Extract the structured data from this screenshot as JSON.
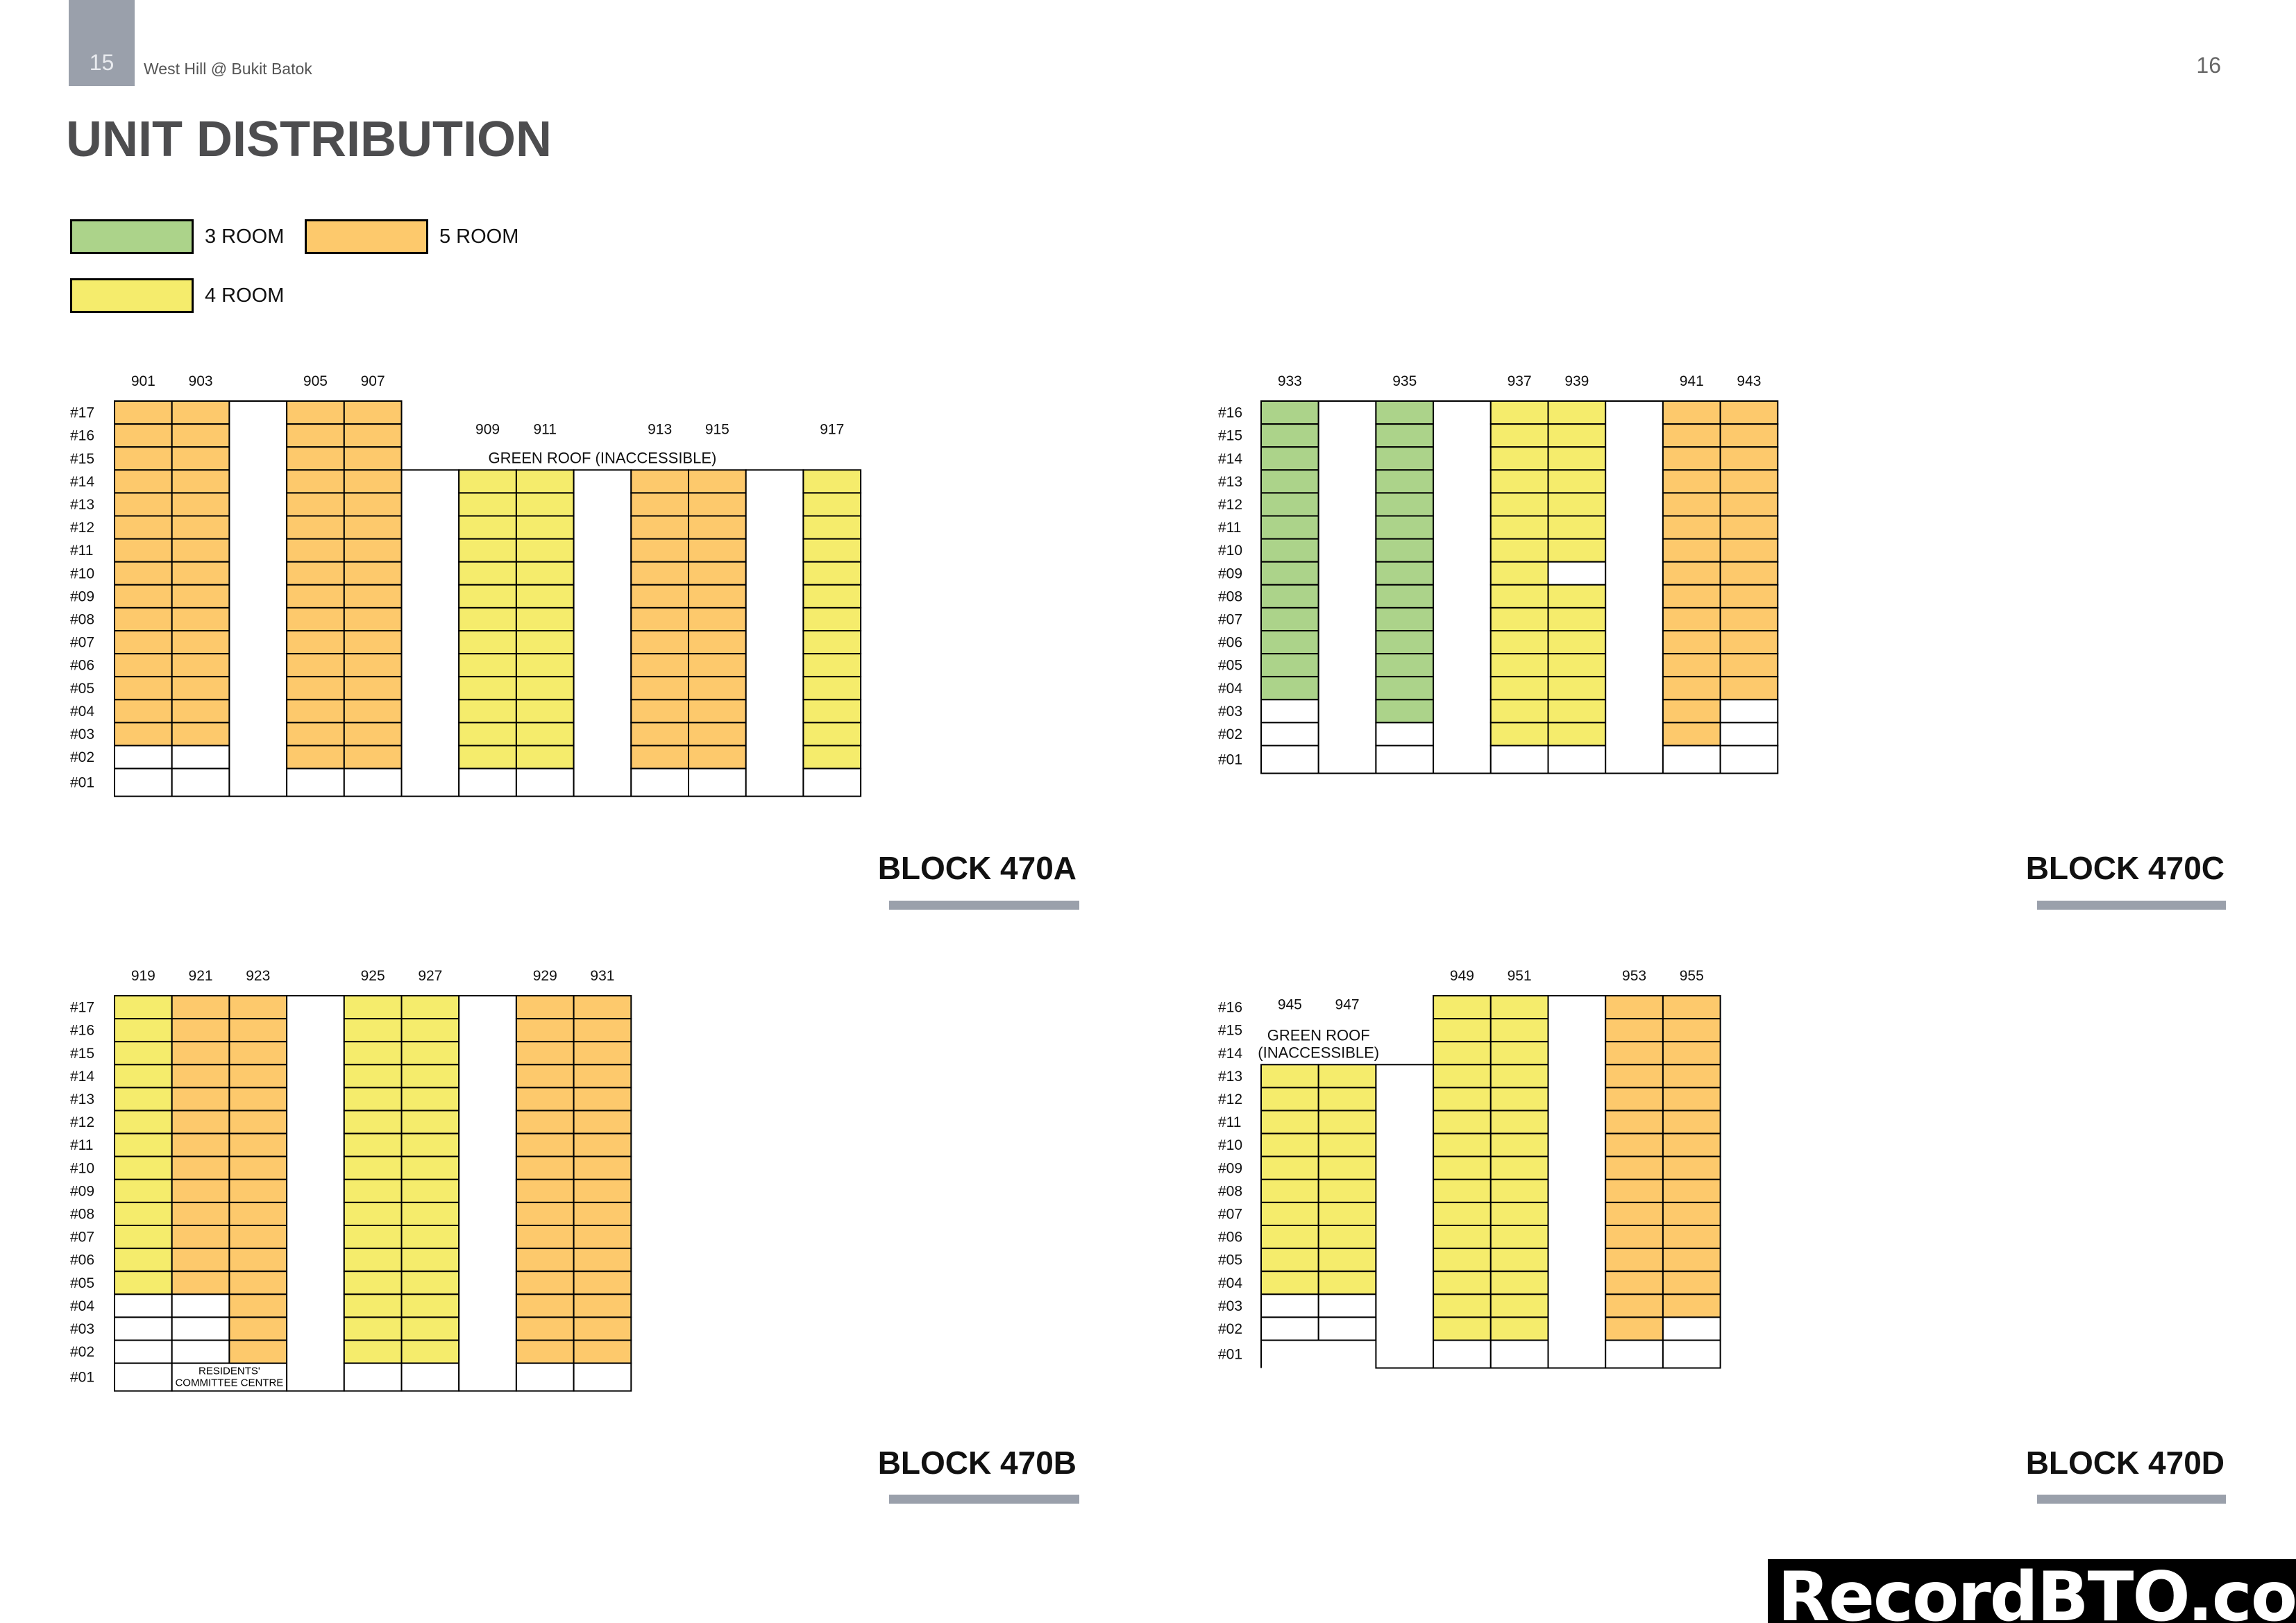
{
  "header": {
    "page_left": "15",
    "document_title": "West Hill @ Bukit Batok",
    "page_right": "16"
  },
  "heading": "UNIT DISTRIBUTION",
  "colors": {
    "3": "#acd38a",
    "4": "#f5ec6c",
    "5": "#fdc96c",
    "accent_bar": "#9aa0ab"
  },
  "legend": [
    {
      "type": "3",
      "label": "3 ROOM"
    },
    {
      "type": "5",
      "label": "5 ROOM"
    },
    {
      "type": "4",
      "label": "4 ROOM"
    }
  ],
  "cell_codes": {
    "3": "3 ROOM",
    "4": "4 ROOM",
    "5": "5 ROOM",
    "0": "non-residential / empty",
    "g": "void",
    "-": "none",
    "o": "open",
    "r": "residents' committee centre"
  },
  "blocks": [
    {
      "title": "BLOCK 470A",
      "floors": [
        "#17",
        "#16",
        "#15",
        "#14",
        "#13",
        "#12",
        "#11",
        "#10",
        "#09",
        "#08",
        "#07",
        "#06",
        "#05",
        "#04",
        "#03",
        "#02",
        "#01"
      ],
      "columns": [
        {
          "unit": "901",
          "cells": "55555555555555500"
        },
        {
          "unit": "903",
          "cells": "55555555555555500"
        },
        {
          "unit": "",
          "cells": "ggggggggggggggggg"
        },
        {
          "unit": "905",
          "cells": "55555555555555550"
        },
        {
          "unit": "907",
          "cells": "55555555555555550"
        },
        {
          "unit": "",
          "cells": "---gggggggggggggg"
        },
        {
          "unit": "909",
          "cells": "---44444444444440"
        },
        {
          "unit": "911",
          "cells": "---44444444444440"
        },
        {
          "unit": "",
          "cells": "---gggggggggggggg"
        },
        {
          "unit": "913",
          "cells": "---55555555555550"
        },
        {
          "unit": "915",
          "cells": "---55555555555550"
        },
        {
          "unit": "",
          "cells": "---gggggggggggggg"
        },
        {
          "unit": "917",
          "cells": "---44444444444440"
        }
      ],
      "roof": {
        "lines": [
          "GREEN ROOF (INACCESSIBLE)"
        ],
        "from_unit": "909",
        "to_unit": "915"
      }
    },
    {
      "title": "BLOCK 470C",
      "floors": [
        "#16",
        "#15",
        "#14",
        "#13",
        "#12",
        "#11",
        "#10",
        "#09",
        "#08",
        "#07",
        "#06",
        "#05",
        "#04",
        "#03",
        "#02",
        "#01"
      ],
      "columns": [
        {
          "unit": "933",
          "cells": "3333333333333000"
        },
        {
          "unit": "",
          "cells": "gggggggggggggggg"
        },
        {
          "unit": "935",
          "cells": "3333333333333300"
        },
        {
          "unit": "",
          "cells": "gggggggggggggggg"
        },
        {
          "unit": "937",
          "cells": "4444444444444440"
        },
        {
          "unit": "939",
          "cells": "4444444044444440"
        },
        {
          "unit": "",
          "cells": "gggggggggggggggg"
        },
        {
          "unit": "941",
          "cells": "5555555555555550"
        },
        {
          "unit": "943",
          "cells": "5555555555555000"
        }
      ]
    },
    {
      "title": "BLOCK 470B",
      "floors": [
        "#17",
        "#16",
        "#15",
        "#14",
        "#13",
        "#12",
        "#11",
        "#10",
        "#09",
        "#08",
        "#07",
        "#06",
        "#05",
        "#04",
        "#03",
        "#02",
        "#01"
      ],
      "columns": [
        {
          "unit": "919",
          "cells": "44444444444440000"
        },
        {
          "unit": "921",
          "cells": "5555555555555000r"
        },
        {
          "unit": "923",
          "cells": "5555555555555555r"
        },
        {
          "unit": "",
          "cells": "ggggggggggggggggg"
        },
        {
          "unit": "925",
          "cells": "44444444444444440"
        },
        {
          "unit": "927",
          "cells": "44444444444444440"
        },
        {
          "unit": "",
          "cells": "ggggggggggggggggg"
        },
        {
          "unit": "929",
          "cells": "55555555555555550"
        },
        {
          "unit": "931",
          "cells": "55555555555555550"
        }
      ],
      "facility_label": "RESIDENTS' COMMITTEE CENTRE"
    },
    {
      "title": "BLOCK 470D",
      "floors": [
        "#16",
        "#15",
        "#14",
        "#13",
        "#12",
        "#11",
        "#10",
        "#09",
        "#08",
        "#07",
        "#06",
        "#05",
        "#04",
        "#03",
        "#02",
        "#01"
      ],
      "columns": [
        {
          "unit": "945",
          "cells": "---444444444400o"
        },
        {
          "unit": "947",
          "cells": "---444444444400o"
        },
        {
          "unit": "",
          "cells": "---ggggggggggggg"
        },
        {
          "unit": "949",
          "cells": "4444444444444440"
        },
        {
          "unit": "951",
          "cells": "4444444444444440"
        },
        {
          "unit": "",
          "cells": "gggggggggggggggg"
        },
        {
          "unit": "953",
          "cells": "5555555555555550"
        },
        {
          "unit": "955",
          "cells": "5555555555555500"
        }
      ],
      "roof": {
        "lines": [
          "GREEN ROOF",
          "(INACCESSIBLE)"
        ],
        "from_unit": "945",
        "to_unit": "947"
      }
    }
  ],
  "watermark": "RecordBTO.com"
}
